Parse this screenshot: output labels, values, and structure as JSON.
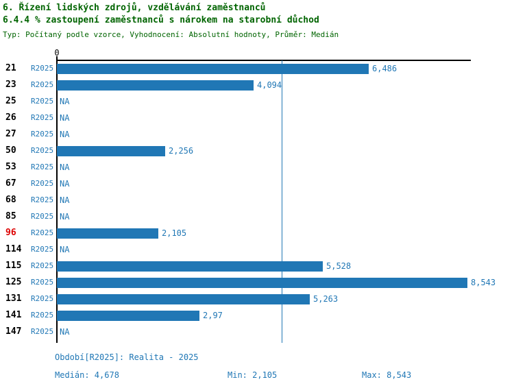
{
  "header": {
    "title_line1": "6. Řízení lidských zdrojů, vzdělávání zaměstnanců",
    "title_line2": "6.4.4 % zastoupení zaměstnanců s nárokem na starobní důchod",
    "subtitle": "Typ: Počítaný podle vzorce, Vyhodnocení: Absolutní hodnoty, Průměr: Medián"
  },
  "chart_data": {
    "type": "bar",
    "orientation": "horizontal",
    "axis_zero_label": "0",
    "period_label": "R2025",
    "na_label": "NA",
    "categories": [
      "21",
      "23",
      "25",
      "26",
      "27",
      "50",
      "53",
      "67",
      "68",
      "85",
      "96",
      "114",
      "115",
      "125",
      "131",
      "141",
      "147"
    ],
    "values": [
      6.486,
      4.094,
      null,
      null,
      null,
      2.256,
      null,
      null,
      null,
      null,
      2.105,
      null,
      5.528,
      8.543,
      5.263,
      2.97,
      null
    ],
    "value_labels": [
      "6,486",
      "4,094",
      "NA",
      "NA",
      "NA",
      "2,256",
      "NA",
      "NA",
      "NA",
      "NA",
      "2,105",
      "NA",
      "5,528",
      "8,543",
      "5,263",
      "2,97",
      "NA"
    ],
    "highlighted_category": "96",
    "median": 4.678,
    "xlim": [
      0,
      8.543
    ],
    "grid": false,
    "legend": false,
    "colors": {
      "bar": "#2077b5",
      "highlight": "#dd0000",
      "title": "#006400",
      "axis": "#000000",
      "value_text": "#2077b5",
      "footer_text": "#2077b5"
    }
  },
  "footer": {
    "period": "Období[R2025]: Realita - 2025",
    "median": "Medián: 4,678",
    "min": "Min: 2,105",
    "max": "Max: 8,543"
  }
}
